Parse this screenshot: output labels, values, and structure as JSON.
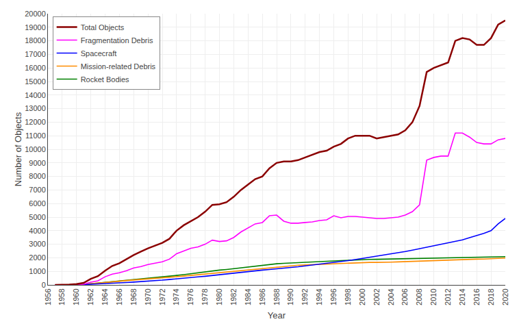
{
  "chart_data": {
    "type": "line",
    "x_label": "Year",
    "y_label": "Number of Objects",
    "x": [
      1957,
      1958,
      1959,
      1960,
      1961,
      1962,
      1963,
      1964,
      1965,
      1966,
      1967,
      1968,
      1969,
      1970,
      1971,
      1972,
      1973,
      1974,
      1975,
      1976,
      1977,
      1978,
      1979,
      1980,
      1981,
      1982,
      1983,
      1984,
      1985,
      1986,
      1987,
      1988,
      1989,
      1990,
      1991,
      1992,
      1993,
      1994,
      1995,
      1996,
      1997,
      1998,
      1999,
      2000,
      2001,
      2002,
      2003,
      2004,
      2005,
      2006,
      2007,
      2008,
      2009,
      2010,
      2011,
      2012,
      2013,
      2014,
      2015,
      2016,
      2017,
      2018,
      2019,
      2020
    ],
    "series": [
      {
        "name": "Total Objects",
        "color": "#8B0000",
        "values": [
          2,
          5,
          20,
          60,
          150,
          450,
          650,
          1050,
          1400,
          1600,
          1900,
          2200,
          2450,
          2700,
          2900,
          3100,
          3400,
          4000,
          4400,
          4700,
          5000,
          5400,
          5900,
          5950,
          6100,
          6500,
          7000,
          7400,
          7800,
          8000,
          8600,
          9000,
          9100,
          9100,
          9200,
          9400,
          9600,
          9800,
          9900,
          10200,
          10400,
          10800,
          11000,
          11000,
          11000,
          10800,
          10900,
          11000,
          11100,
          11400,
          12000,
          13200,
          15700,
          16000,
          16200,
          16400,
          18000,
          18200,
          18100,
          17700,
          17700,
          18200,
          19200,
          19500
        ]
      },
      {
        "name": "Fragmentation Debris",
        "color": "#FF00FF",
        "values": [
          0,
          1,
          5,
          15,
          50,
          200,
          300,
          600,
          800,
          900,
          1050,
          1250,
          1350,
          1500,
          1600,
          1700,
          1900,
          2300,
          2500,
          2700,
          2800,
          3000,
          3300,
          3200,
          3250,
          3500,
          3900,
          4200,
          4500,
          4600,
          5100,
          5150,
          4700,
          4550,
          4550,
          4600,
          4650,
          4750,
          4800,
          5100,
          4950,
          5050,
          5050,
          5000,
          4950,
          4900,
          4900,
          4950,
          5000,
          5150,
          5400,
          5900,
          9200,
          9400,
          9500,
          9500,
          11200,
          11200,
          10900,
          10500,
          10400,
          10400,
          10700,
          10800
        ]
      },
      {
        "name": "Spacecraft",
        "color": "#0000FF",
        "values": [
          1,
          2,
          5,
          12,
          25,
          50,
          70,
          95,
          120,
          150,
          180,
          210,
          240,
          270,
          310,
          350,
          400,
          440,
          490,
          540,
          590,
          640,
          700,
          750,
          800,
          860,
          920,
          980,
          1040,
          1090,
          1140,
          1200,
          1250,
          1290,
          1340,
          1400,
          1460,
          1520,
          1580,
          1650,
          1720,
          1790,
          1870,
          1950,
          2030,
          2110,
          2190,
          2280,
          2370,
          2460,
          2560,
          2670,
          2780,
          2890,
          3000,
          3100,
          3200,
          3320,
          3480,
          3630,
          3800,
          4000,
          4500,
          4900
        ]
      },
      {
        "name": "Mission-related Debris",
        "color": "#FF8C00",
        "values": [
          0,
          1,
          3,
          10,
          25,
          80,
          120,
          180,
          230,
          270,
          320,
          360,
          400,
          440,
          470,
          510,
          540,
          600,
          650,
          700,
          750,
          810,
          860,
          900,
          950,
          1000,
          1060,
          1110,
          1150,
          1200,
          1250,
          1310,
          1360,
          1410,
          1450,
          1470,
          1490,
          1520,
          1540,
          1560,
          1590,
          1620,
          1640,
          1650,
          1660,
          1660,
          1660,
          1680,
          1700,
          1720,
          1750,
          1770,
          1780,
          1800,
          1820,
          1840,
          1870,
          1880,
          1890,
          1900,
          1910,
          1930,
          1950,
          1980
        ]
      },
      {
        "name": "Rocket Bodies",
        "color": "#008000",
        "values": [
          1,
          2,
          6,
          15,
          30,
          80,
          130,
          180,
          230,
          270,
          330,
          370,
          420,
          470,
          520,
          580,
          640,
          700,
          760,
          830,
          890,
          960,
          1030,
          1090,
          1140,
          1200,
          1260,
          1320,
          1380,
          1450,
          1510,
          1560,
          1590,
          1620,
          1650,
          1680,
          1710,
          1730,
          1750,
          1770,
          1790,
          1820,
          1840,
          1860,
          1880,
          1890,
          1900,
          1910,
          1920,
          1930,
          1940,
          1950,
          1960,
          1970,
          1980,
          1990,
          2000,
          2010,
          2020,
          2030,
          2040,
          2050,
          2060,
          2080
        ]
      }
    ],
    "xlim": [
      1956,
      2020
    ],
    "ylim": [
      0,
      20000
    ],
    "xticks": [
      1956,
      1958,
      1960,
      1962,
      1964,
      1966,
      1968,
      1970,
      1972,
      1974,
      1976,
      1978,
      1980,
      1982,
      1984,
      1986,
      1988,
      1990,
      1992,
      1994,
      1996,
      1998,
      2000,
      2002,
      2004,
      2006,
      2008,
      2010,
      2012,
      2014,
      2016,
      2018,
      2020
    ],
    "yticks": [
      0,
      1000,
      2000,
      3000,
      4000,
      5000,
      6000,
      7000,
      8000,
      9000,
      10000,
      11000,
      12000,
      13000,
      14000,
      15000,
      16000,
      17000,
      18000,
      19000,
      20000
    ],
    "grid": true,
    "legend": "upper left"
  }
}
